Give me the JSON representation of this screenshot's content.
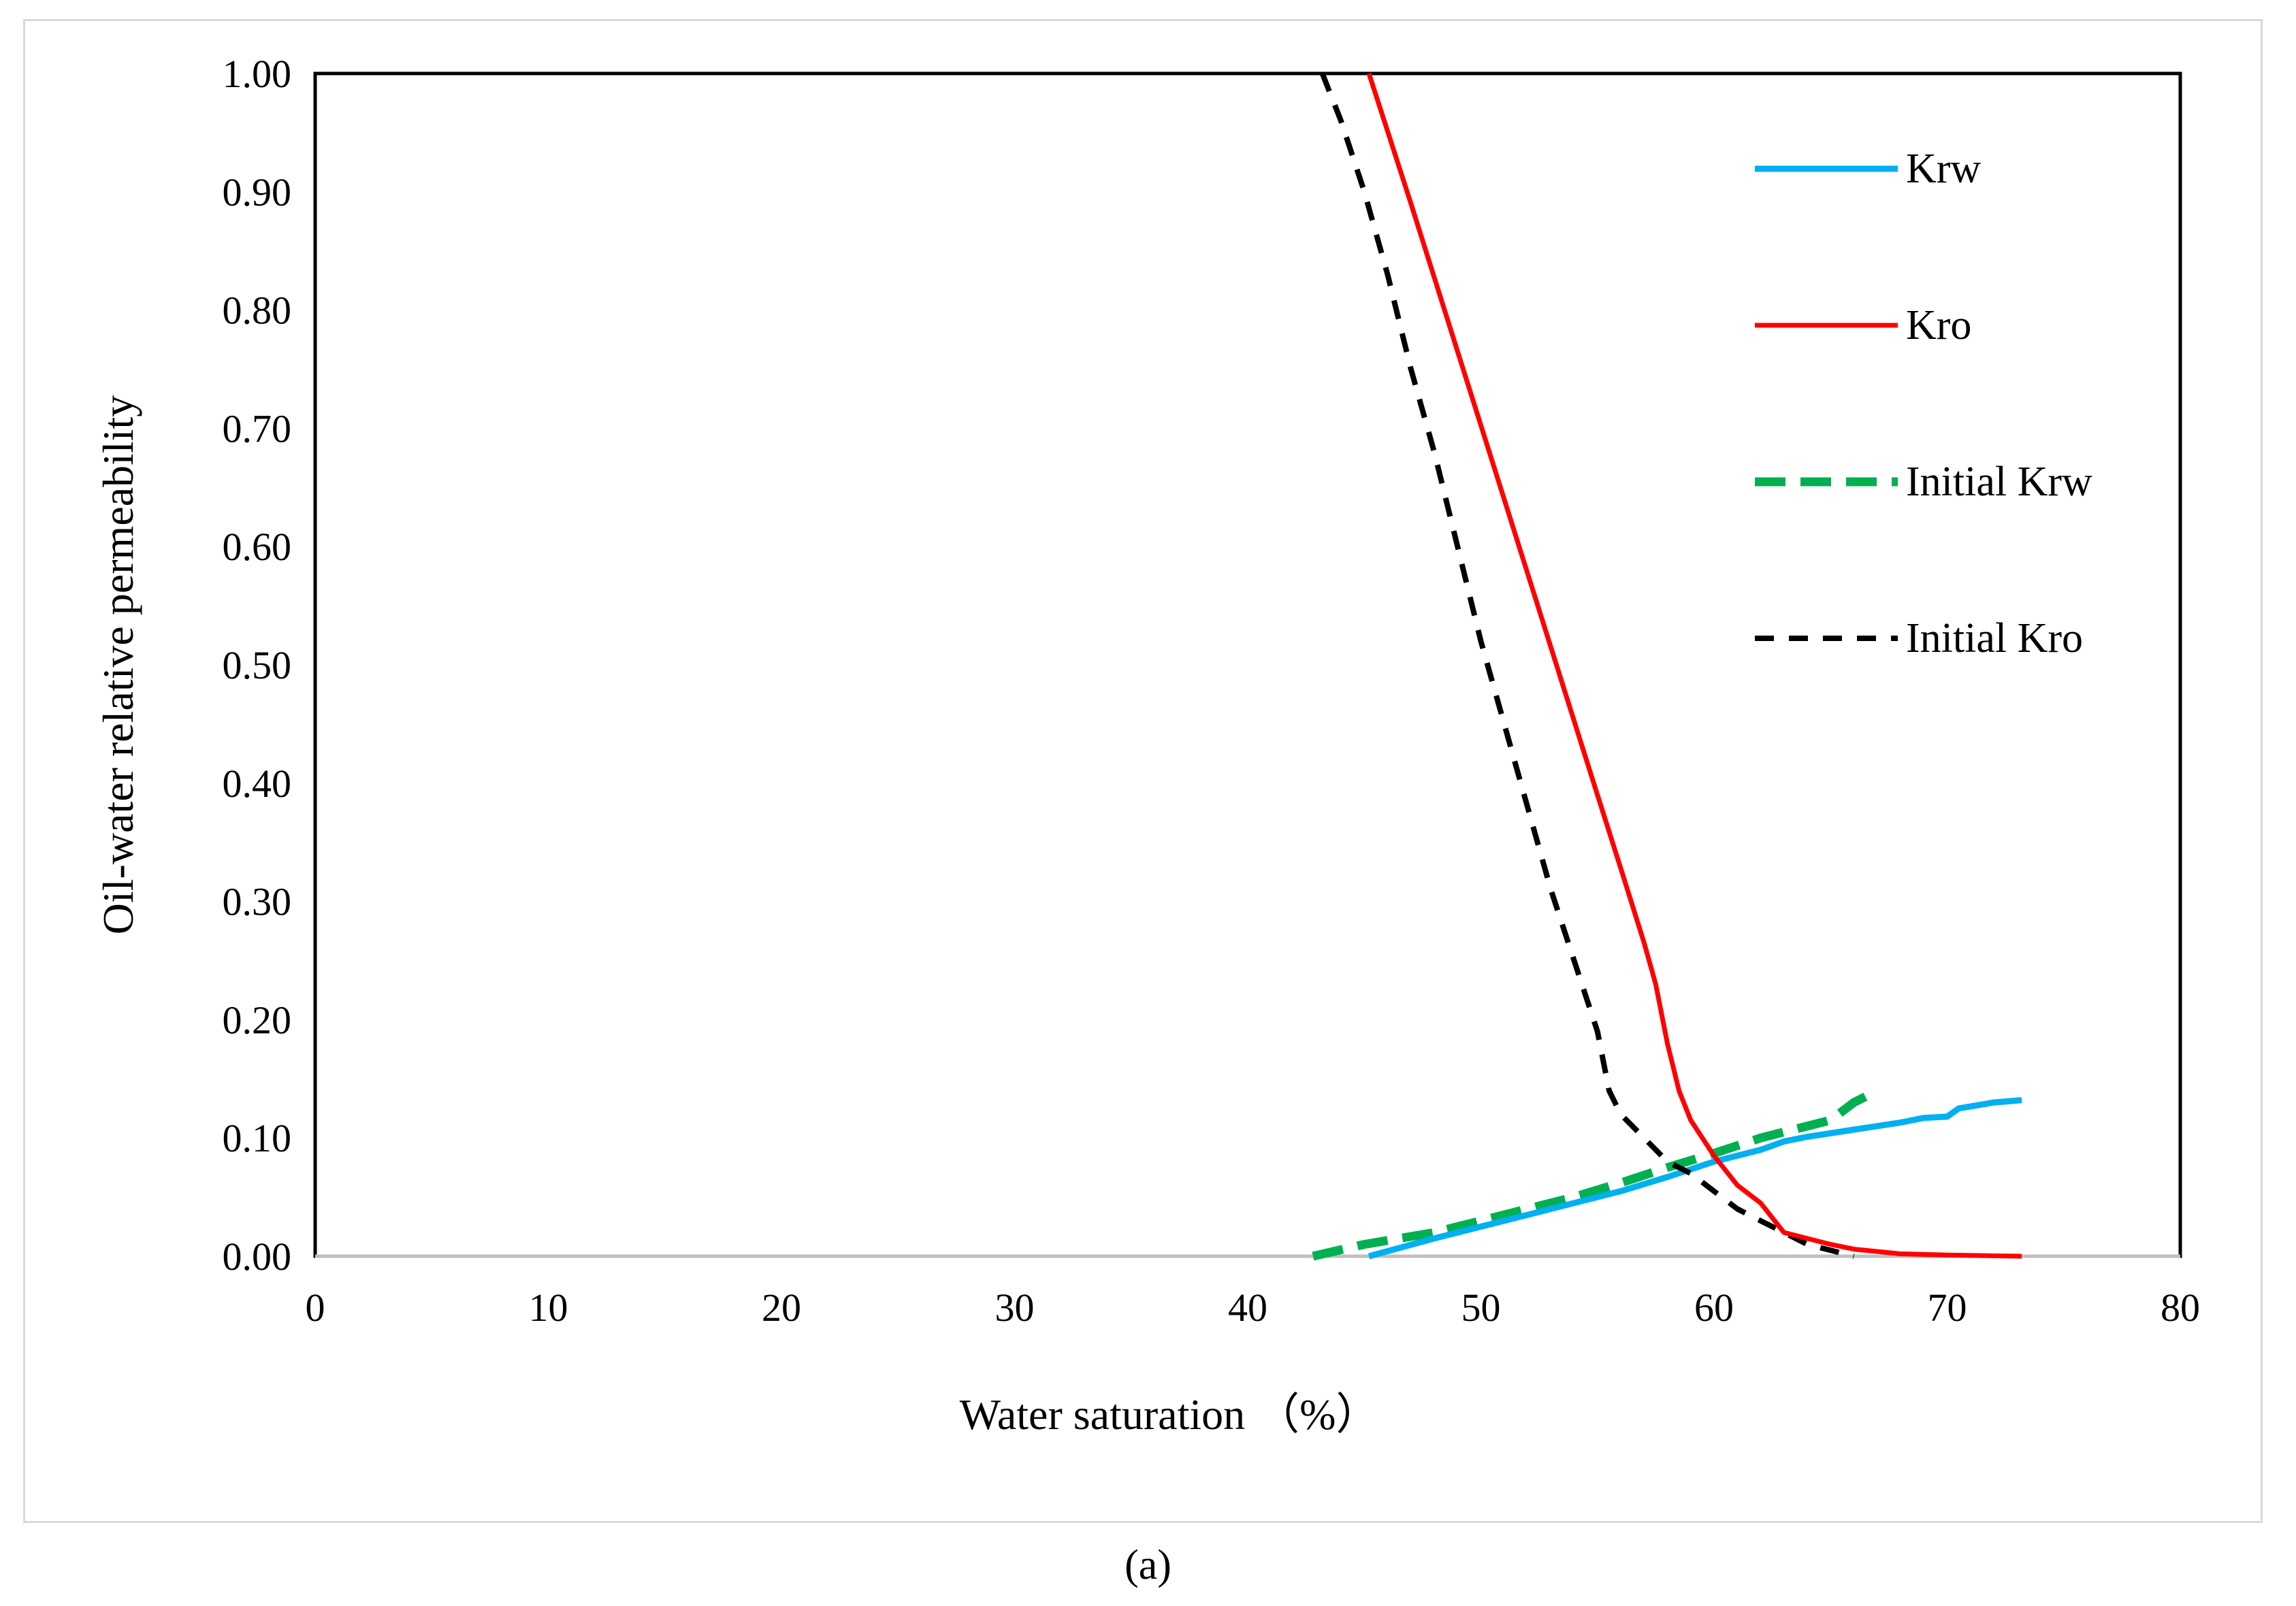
{
  "chart_data": {
    "type": "line",
    "title": "",
    "xlabel": "Water saturation （%）",
    "ylabel": "Oil-water relative permeability",
    "xlim": [
      0,
      80
    ],
    "ylim": [
      0,
      1
    ],
    "x_ticks": [
      "0",
      "10",
      "20",
      "30",
      "40",
      "50",
      "60",
      "70",
      "80"
    ],
    "y_ticks": [
      "0.00",
      "0.10",
      "0.20",
      "0.30",
      "0.40",
      "0.50",
      "0.60",
      "0.70",
      "0.80",
      "0.90",
      "1.00"
    ],
    "grid": false,
    "legend_position": "top-right",
    "series": [
      {
        "name": "Krw",
        "color": "#00b0f0",
        "dash": "solid",
        "x": [
          45.2,
          48,
          50,
          52,
          54,
          56,
          58,
          60,
          62,
          63,
          64,
          66,
          68,
          69,
          70,
          70.5,
          72,
          73.2
        ],
        "y": [
          0.0,
          0.015,
          0.025,
          0.035,
          0.045,
          0.055,
          0.067,
          0.08,
          0.09,
          0.097,
          0.101,
          0.107,
          0.113,
          0.117,
          0.118,
          0.125,
          0.13,
          0.132
        ]
      },
      {
        "name": "Kro",
        "color": "#ff0000",
        "dash": "solid",
        "x": [
          45.2,
          47,
          49,
          51,
          53,
          55,
          56,
          57,
          57.5,
          58,
          58.5,
          59,
          60,
          61,
          62,
          63,
          64,
          65,
          66,
          68,
          70,
          73.2
        ],
        "y": [
          1.0,
          0.89,
          0.765,
          0.64,
          0.515,
          0.39,
          0.328,
          0.265,
          0.23,
          0.18,
          0.14,
          0.115,
          0.085,
          0.06,
          0.045,
          0.02,
          0.015,
          0.01,
          0.006,
          0.002,
          0.001,
          0.0
        ]
      },
      {
        "name": "Initial Krw",
        "color": "#00b050",
        "dash": "long-dash",
        "x": [
          42.8,
          45,
          48,
          50,
          52,
          54,
          56,
          58,
          60,
          62,
          64,
          65,
          66,
          67
        ],
        "y": [
          0.0,
          0.01,
          0.02,
          0.03,
          0.04,
          0.05,
          0.062,
          0.075,
          0.087,
          0.1,
          0.11,
          0.115,
          0.13,
          0.14
        ]
      },
      {
        "name": "Initial Kro",
        "color": "#000000",
        "dash": "dash",
        "x": [
          43.2,
          44,
          45,
          46,
          47,
          48,
          49,
          50,
          51,
          52,
          53,
          54,
          55,
          55.5,
          56,
          57,
          58,
          59,
          60,
          61,
          62,
          63,
          64,
          65,
          66
        ],
        "y": [
          1.0,
          0.96,
          0.9,
          0.83,
          0.75,
          0.68,
          0.6,
          0.52,
          0.45,
          0.38,
          0.31,
          0.25,
          0.19,
          0.14,
          0.12,
          0.1,
          0.08,
          0.07,
          0.055,
          0.04,
          0.03,
          0.02,
          0.01,
          0.005,
          0.0
        ]
      }
    ]
  },
  "caption": "(a)"
}
